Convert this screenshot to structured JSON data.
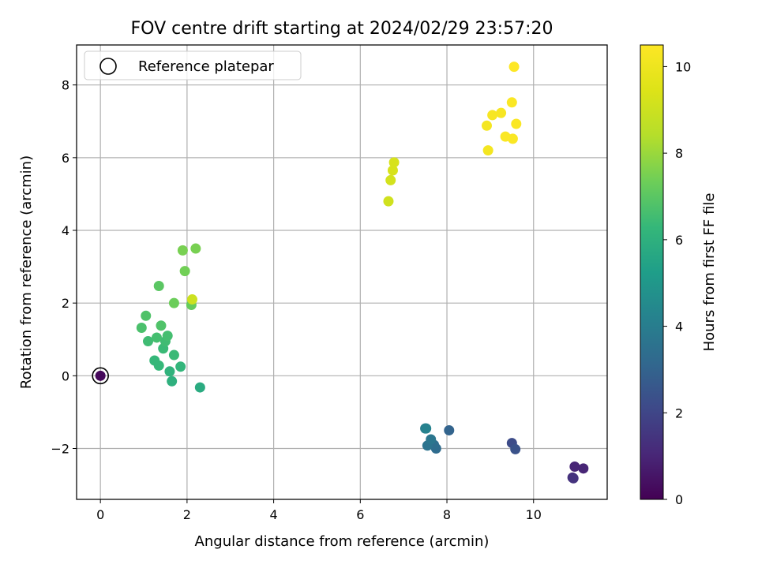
{
  "chart_data": {
    "type": "scatter",
    "title": "FOV centre drift starting at 2024/02/29 23:57:20",
    "xlabel": "Angular distance from reference (arcmin)",
    "ylabel": "Rotation from reference (arcmin)",
    "xlim": [
      -0.55,
      11.7
    ],
    "ylim": [
      -3.4,
      9.1
    ],
    "xticks": [
      0,
      2,
      4,
      6,
      8,
      10
    ],
    "yticks": [
      -2,
      0,
      2,
      4,
      6,
      8
    ],
    "xtick_labels": [
      "0",
      "2",
      "4",
      "6",
      "8",
      "10"
    ],
    "ytick_labels": [
      "−2",
      "0",
      "2",
      "4",
      "6",
      "8"
    ],
    "grid": true,
    "legend": {
      "position": "top-left",
      "entries": [
        {
          "label": "Reference platepar",
          "marker": "open-circle"
        }
      ]
    },
    "reference_point": {
      "x": 0,
      "y": 0
    },
    "colorbar": {
      "label": "Hours from first FF file",
      "colormap": "viridis",
      "range": [
        0,
        10.5
      ],
      "ticks": [
        0,
        2,
        4,
        6,
        8,
        10
      ],
      "tick_labels": [
        "0",
        "2",
        "4",
        "6",
        "8",
        "10"
      ]
    },
    "points": [
      {
        "x": 0.0,
        "y": 0.0,
        "hours": 0.2
      },
      {
        "x": 10.95,
        "y": -2.5,
        "hours": 1.0
      },
      {
        "x": 11.15,
        "y": -2.55,
        "hours": 1.0
      },
      {
        "x": 10.9,
        "y": -2.8,
        "hours": 1.3
      },
      {
        "x": 10.92,
        "y": -2.82,
        "hours": 1.4
      },
      {
        "x": 9.5,
        "y": -1.85,
        "hours": 2.2
      },
      {
        "x": 9.58,
        "y": -2.02,
        "hours": 2.4
      },
      {
        "x": 8.05,
        "y": -1.5,
        "hours": 3.0
      },
      {
        "x": 7.75,
        "y": -2.0,
        "hours": 3.3
      },
      {
        "x": 7.7,
        "y": -1.9,
        "hours": 3.4
      },
      {
        "x": 7.55,
        "y": -1.92,
        "hours": 3.6
      },
      {
        "x": 7.63,
        "y": -1.75,
        "hours": 3.7
      },
      {
        "x": 7.5,
        "y": -1.45,
        "hours": 4.0
      },
      {
        "x": 7.52,
        "y": -1.45,
        "hours": 4.2
      },
      {
        "x": 2.3,
        "y": -0.32,
        "hours": 5.8
      },
      {
        "x": 1.65,
        "y": -0.15,
        "hours": 6.0
      },
      {
        "x": 1.6,
        "y": 0.12,
        "hours": 6.1
      },
      {
        "x": 1.85,
        "y": 0.25,
        "hours": 6.2
      },
      {
        "x": 1.35,
        "y": 0.28,
        "hours": 6.3
      },
      {
        "x": 1.25,
        "y": 0.42,
        "hours": 6.3
      },
      {
        "x": 1.7,
        "y": 0.57,
        "hours": 6.4
      },
      {
        "x": 1.45,
        "y": 0.75,
        "hours": 6.4
      },
      {
        "x": 1.1,
        "y": 0.95,
        "hours": 6.5
      },
      {
        "x": 1.5,
        "y": 0.95,
        "hours": 6.5
      },
      {
        "x": 1.55,
        "y": 1.1,
        "hours": 6.6
      },
      {
        "x": 1.3,
        "y": 1.05,
        "hours": 6.6
      },
      {
        "x": 0.95,
        "y": 1.32,
        "hours": 6.7
      },
      {
        "x": 1.4,
        "y": 1.38,
        "hours": 6.8
      },
      {
        "x": 1.05,
        "y": 1.65,
        "hours": 6.8
      },
      {
        "x": 1.35,
        "y": 2.47,
        "hours": 7.0
      },
      {
        "x": 2.1,
        "y": 1.95,
        "hours": 7.2
      },
      {
        "x": 1.7,
        "y": 2.0,
        "hours": 7.3
      },
      {
        "x": 1.95,
        "y": 2.88,
        "hours": 7.4
      },
      {
        "x": 1.9,
        "y": 3.45,
        "hours": 7.5
      },
      {
        "x": 2.2,
        "y": 3.5,
        "hours": 7.5
      },
      {
        "x": 2.12,
        "y": 2.1,
        "hours": 9.0
      },
      {
        "x": 6.65,
        "y": 4.8,
        "hours": 9.1
      },
      {
        "x": 6.7,
        "y": 5.38,
        "hours": 9.2
      },
      {
        "x": 6.75,
        "y": 5.65,
        "hours": 9.3
      },
      {
        "x": 6.78,
        "y": 5.87,
        "hours": 9.3
      },
      {
        "x": 8.95,
        "y": 6.2,
        "hours": 10.2
      },
      {
        "x": 8.92,
        "y": 6.88,
        "hours": 10.2
      },
      {
        "x": 9.05,
        "y": 7.17,
        "hours": 10.3
      },
      {
        "x": 9.25,
        "y": 7.23,
        "hours": 10.3
      },
      {
        "x": 9.35,
        "y": 6.58,
        "hours": 10.4
      },
      {
        "x": 9.52,
        "y": 6.52,
        "hours": 10.4
      },
      {
        "x": 9.6,
        "y": 6.93,
        "hours": 10.4
      },
      {
        "x": 9.5,
        "y": 7.52,
        "hours": 10.4
      },
      {
        "x": 9.55,
        "y": 8.5,
        "hours": 10.5
      }
    ]
  }
}
